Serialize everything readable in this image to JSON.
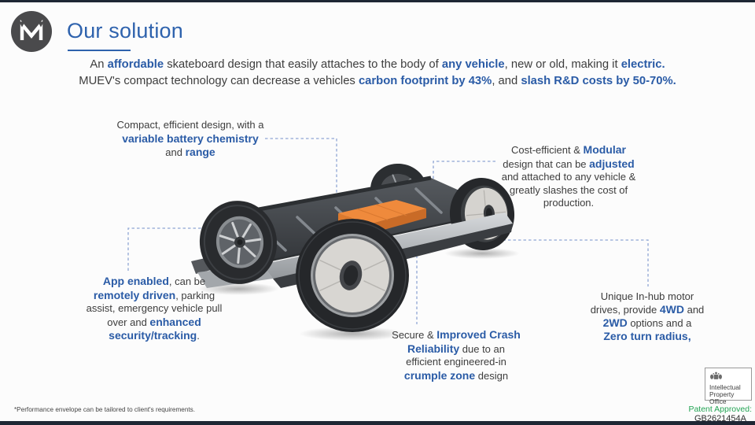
{
  "slide": {
    "colors": {
      "accent": "#2a5ba6",
      "title": "#2e62ad",
      "body": "#3d3d3d",
      "dash": "#8fa6d4",
      "green": "#23a454",
      "bar": "#1e2734",
      "logo-bg": "#4a4a4c",
      "battery-orange": "#ef8a3c"
    }
  },
  "logo": {
    "letter": "M"
  },
  "header": {
    "title": "Our solution"
  },
  "intro": {
    "line1": [
      {
        "t": "An ",
        "s": "n"
      },
      {
        "t": "affordable",
        "s": "a"
      },
      {
        "t": " skateboard design that easily attaches to the body of ",
        "s": "n"
      },
      {
        "t": "any vehicle",
        "s": "a"
      },
      {
        "t": ", new or old, making it ",
        "s": "n"
      },
      {
        "t": "electric.",
        "s": "a"
      }
    ],
    "line2": [
      {
        "t": "MUEV's compact technology can decrease a vehicles ",
        "s": "n"
      },
      {
        "t": "carbon footprint by 43%",
        "s": "a"
      },
      {
        "t": ", and ",
        "s": "n"
      },
      {
        "t": "slash R&D costs by 50-70%.",
        "s": "a"
      }
    ]
  },
  "callouts": [
    {
      "id": "battery",
      "runs": [
        {
          "t": "Compact, efficient design, with a",
          "s": "n"
        },
        {
          "s": "br"
        },
        {
          "t": "variable battery chemistry",
          "s": "a"
        },
        {
          "s": "br"
        },
        {
          "t": "and ",
          "s": "n"
        },
        {
          "t": "range",
          "s": "a"
        }
      ]
    },
    {
      "id": "modular",
      "runs": [
        {
          "t": "Cost-efficient & ",
          "s": "n"
        },
        {
          "t": "Modular",
          "s": "a"
        },
        {
          "s": "br"
        },
        {
          "t": "design that can be ",
          "s": "n"
        },
        {
          "t": "adjusted",
          "s": "a"
        },
        {
          "s": "br"
        },
        {
          "t": "and attached to any vehicle &",
          "s": "n"
        },
        {
          "s": "br"
        },
        {
          "t": "greatly slashes the cost of",
          "s": "n"
        },
        {
          "s": "br"
        },
        {
          "t": "production.",
          "s": "n"
        }
      ]
    },
    {
      "id": "app",
      "runs": [
        {
          "t": "App enabled",
          "s": "a"
        },
        {
          "t": ", can be",
          "s": "n"
        },
        {
          "s": "br"
        },
        {
          "t": "remotely driven",
          "s": "a"
        },
        {
          "t": ", parking",
          "s": "n"
        },
        {
          "s": "br"
        },
        {
          "t": "assist, emergency vehicle pull",
          "s": "n"
        },
        {
          "s": "br"
        },
        {
          "t": "over and ",
          "s": "n"
        },
        {
          "t": "enhanced",
          "s": "a"
        },
        {
          "s": "br"
        },
        {
          "t": "security/tracking",
          "s": "a"
        },
        {
          "t": ".",
          "s": "n"
        }
      ]
    },
    {
      "id": "crash",
      "runs": [
        {
          "t": "Secure & ",
          "s": "n"
        },
        {
          "t": "Improved Crash",
          "s": "a"
        },
        {
          "s": "br"
        },
        {
          "t": "Reliability",
          "s": "a"
        },
        {
          "t": " due to an",
          "s": "n"
        },
        {
          "s": "br"
        },
        {
          "t": "efficient engineered-in",
          "s": "n"
        },
        {
          "s": "br"
        },
        {
          "t": "crumple zone",
          "s": "a"
        },
        {
          "t": " design",
          "s": "n"
        }
      ]
    },
    {
      "id": "motor",
      "runs": [
        {
          "t": "Unique In-hub motor",
          "s": "n"
        },
        {
          "s": "br"
        },
        {
          "t": "drives, provide ",
          "s": "n"
        },
        {
          "t": "4WD",
          "s": "a"
        },
        {
          "t": " and",
          "s": "n"
        },
        {
          "s": "br"
        },
        {
          "t": "2WD",
          "s": "a"
        },
        {
          "t": " options and a",
          "s": "n"
        },
        {
          "s": "br"
        },
        {
          "t": "Zero turn radius,",
          "s": "a"
        }
      ]
    }
  ],
  "footnote": "*Performance envelope can be tailored to client's requirements.",
  "ipo": {
    "lines": [
      "Intellectual",
      "Property",
      "Office"
    ]
  },
  "patent": {
    "label": "Patent Approved:",
    "number": "GB2621454A"
  }
}
